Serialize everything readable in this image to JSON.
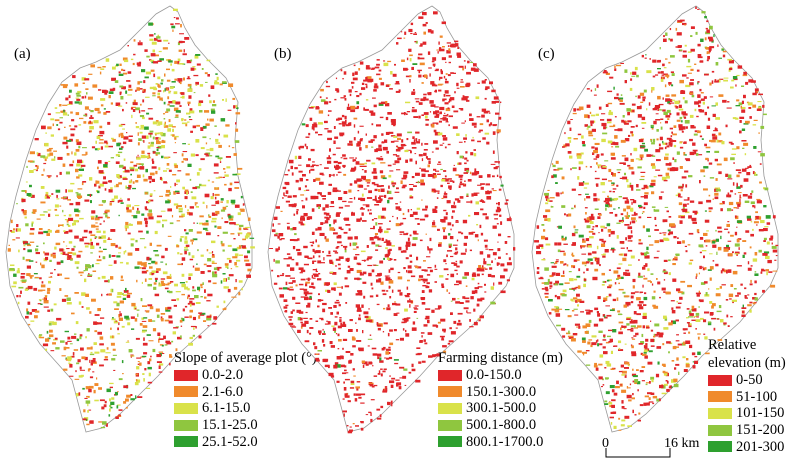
{
  "panels": [
    {
      "label": "(a)",
      "legend_title": "Slope of average plot (°)",
      "items": [
        "0.0-2.0",
        "2.1-6.0",
        "6.1-15.0",
        "15.1-25.0",
        "25.1-52.0"
      ],
      "weights": [
        0.3,
        0.28,
        0.22,
        0.12,
        0.08
      ]
    },
    {
      "label": "(b)",
      "legend_title": "Farming distance (m)",
      "items": [
        "0.0-150.0",
        "150.1-300.0",
        "300.1-500.0",
        "500.1-800.0",
        "800.1-1700.0"
      ],
      "weights": [
        0.88,
        0.06,
        0.03,
        0.02,
        0.01
      ]
    },
    {
      "label": "(c)",
      "legend_title_lines": [
        "Relative",
        "elevation (m)"
      ],
      "items": [
        "0-50",
        "51-100",
        "101-150",
        "151-200",
        "201-300"
      ],
      "weights": [
        0.5,
        0.22,
        0.12,
        0.1,
        0.06
      ]
    }
  ],
  "legend_colors": [
    "#e0262a",
    "#f08a2c",
    "#d9e24a",
    "#8fc63f",
    "#2ea02f"
  ],
  "scale_bar": {
    "start_label": "0",
    "end_label": "16 km"
  }
}
